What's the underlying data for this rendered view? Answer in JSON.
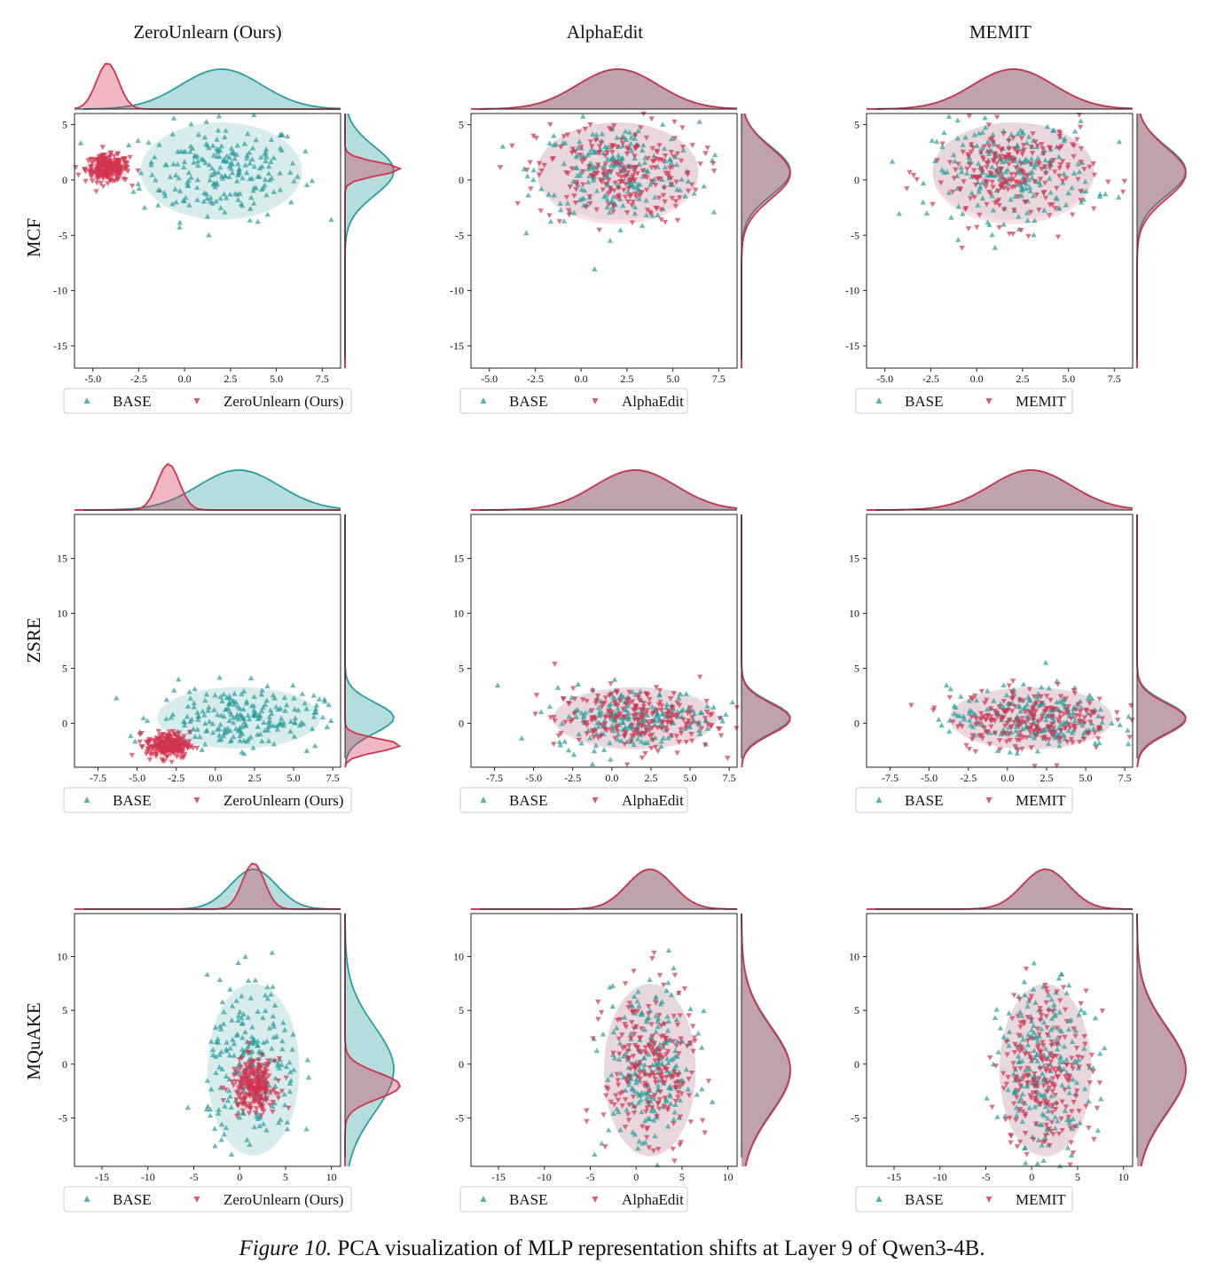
{
  "figure": {
    "caption_label": "Figure 10.",
    "caption_text": "PCA visualization of MLP representation shifts at Layer 9 of Qwen3-4B.",
    "column_titles": [
      "ZeroUnlearn (Ours)",
      "AlphaEdit",
      "MEMIT"
    ],
    "row_labels": [
      "MCF",
      "ZSRE",
      "MQuAKE"
    ]
  },
  "colors": {
    "base": "#2a9d9d",
    "edited": "#d0334f",
    "base_fill": "#cfe7e8",
    "edited_fill": "#f4c6cf"
  },
  "legend": {
    "base_label": "BASE",
    "method_labels": [
      "ZeroUnlearn (Ours)",
      "AlphaEdit",
      "MEMIT"
    ]
  },
  "chart_data": [
    {
      "type": "scatter",
      "dataset": "MCF",
      "method": "ZeroUnlearn (Ours)",
      "xlim": [
        -6,
        8.5
      ],
      "ylim": [
        -17,
        6
      ],
      "xticks": [
        "-5.0",
        "-2.5",
        "0.0",
        "2.5",
        "5.0",
        "7.5"
      ],
      "yticks": [
        "5",
        "0",
        "-5",
        "-10",
        "-15"
      ],
      "legend": [
        "BASE",
        "ZeroUnlearn (Ours)"
      ],
      "series": [
        {
          "marker": "triangle-up",
          "color": "#2a9d9d",
          "center": [
            2,
            0.8
          ],
          "spread": [
            2.2,
            2.2
          ]
        },
        {
          "marker": "triangle-down",
          "color": "#d0334f",
          "center": [
            -4.2,
            1
          ],
          "spread": [
            0.6,
            0.6
          ]
        }
      ]
    },
    {
      "type": "scatter",
      "dataset": "MCF",
      "method": "AlphaEdit",
      "xlim": [
        -6,
        8.5
      ],
      "ylim": [
        -17,
        6
      ],
      "xticks": [
        "-5.0",
        "-2.5",
        "0.0",
        "2.5",
        "5.0",
        "7.5"
      ],
      "yticks": [
        "5",
        "0",
        "-5",
        "-10",
        "-15"
      ],
      "legend": [
        "BASE",
        "AlphaEdit"
      ],
      "series": [
        {
          "marker": "triangle-up",
          "color": "#2a9d9d",
          "center": [
            2,
            0.8
          ],
          "spread": [
            2.2,
            2.2
          ]
        },
        {
          "marker": "triangle-down",
          "color": "#d0334f",
          "center": [
            2,
            0.6
          ],
          "spread": [
            2.2,
            2.3
          ]
        }
      ]
    },
    {
      "type": "scatter",
      "dataset": "MCF",
      "method": "MEMIT",
      "xlim": [
        -6,
        8.5
      ],
      "ylim": [
        -17,
        6
      ],
      "xticks": [
        "-5.0",
        "-2.5",
        "0.0",
        "2.5",
        "5.0",
        "7.5"
      ],
      "yticks": [
        "5",
        "0",
        "-5",
        "-10",
        "-15"
      ],
      "legend": [
        "BASE",
        "MEMIT"
      ],
      "series": [
        {
          "marker": "triangle-up",
          "color": "#2a9d9d",
          "center": [
            2,
            0.8
          ],
          "spread": [
            2.2,
            2.2
          ]
        },
        {
          "marker": "triangle-down",
          "color": "#d0334f",
          "center": [
            2,
            0.6
          ],
          "spread": [
            2.2,
            2.3
          ]
        }
      ]
    },
    {
      "type": "scatter",
      "dataset": "ZSRE",
      "method": "ZeroUnlearn (Ours)",
      "xlim": [
        -9,
        8
      ],
      "ylim": [
        -4,
        19
      ],
      "xticks": [
        "-7.5",
        "-5.0",
        "-2.5",
        "0.0",
        "2.5",
        "5.0",
        "7.5"
      ],
      "yticks": [
        "15",
        "10",
        "5",
        "0"
      ],
      "legend": [
        "BASE",
        "ZeroUnlearn (Ours)"
      ],
      "series": [
        {
          "marker": "triangle-up",
          "color": "#2a9d9d",
          "center": [
            1.5,
            0.5
          ],
          "spread": [
            2.6,
            1.4
          ]
        },
        {
          "marker": "triangle-down",
          "color": "#d0334f",
          "center": [
            -3,
            -2
          ],
          "spread": [
            0.7,
            0.6
          ]
        }
      ]
    },
    {
      "type": "scatter",
      "dataset": "ZSRE",
      "method": "AlphaEdit",
      "xlim": [
        -9,
        8
      ],
      "ylim": [
        -4,
        19
      ],
      "xticks": [
        "-7.5",
        "-5.0",
        "-2.5",
        "0.0",
        "2.5",
        "5.0",
        "7.5"
      ],
      "yticks": [
        "15",
        "10",
        "5",
        "0"
      ],
      "legend": [
        "BASE",
        "AlphaEdit"
      ],
      "series": [
        {
          "marker": "triangle-up",
          "color": "#2a9d9d",
          "center": [
            1.5,
            0.5
          ],
          "spread": [
            2.6,
            1.4
          ]
        },
        {
          "marker": "triangle-down",
          "color": "#d0334f",
          "center": [
            1.5,
            0.4
          ],
          "spread": [
            2.6,
            1.4
          ]
        }
      ]
    },
    {
      "type": "scatter",
      "dataset": "ZSRE",
      "method": "MEMIT",
      "xlim": [
        -9,
        8
      ],
      "ylim": [
        -4,
        19
      ],
      "xticks": [
        "-7.5",
        "-5.0",
        "-2.5",
        "0.0",
        "2.5",
        "5.0",
        "7.5"
      ],
      "yticks": [
        "15",
        "10",
        "5",
        "0"
      ],
      "legend": [
        "BASE",
        "MEMIT"
      ],
      "series": [
        {
          "marker": "triangle-up",
          "color": "#2a9d9d",
          "center": [
            1.5,
            0.5
          ],
          "spread": [
            2.6,
            1.4
          ]
        },
        {
          "marker": "triangle-down",
          "color": "#d0334f",
          "center": [
            1.5,
            0.4
          ],
          "spread": [
            2.6,
            1.4
          ]
        }
      ]
    },
    {
      "type": "scatter",
      "dataset": "MQuAKE",
      "method": "ZeroUnlearn (Ours)",
      "xlim": [
        -18,
        11
      ],
      "ylim": [
        -9.5,
        14
      ],
      "xticks": [
        "-15",
        "-10",
        "-5",
        "0",
        "5",
        "10"
      ],
      "yticks": [
        "10",
        "5",
        "0",
        "-5"
      ],
      "legend": [
        "BASE",
        "ZeroUnlearn (Ours)"
      ],
      "series": [
        {
          "marker": "triangle-up",
          "color": "#2a9d9d",
          "center": [
            1.5,
            -0.5
          ],
          "spread": [
            2.5,
            4
          ]
        },
        {
          "marker": "triangle-down",
          "color": "#d0334f",
          "center": [
            1.5,
            -2
          ],
          "spread": [
            1.2,
            1.2
          ]
        }
      ]
    },
    {
      "type": "scatter",
      "dataset": "MQuAKE",
      "method": "AlphaEdit",
      "xlim": [
        -18,
        11
      ],
      "ylim": [
        -9.5,
        14
      ],
      "xticks": [
        "-15",
        "-10",
        "-5",
        "0",
        "5",
        "10"
      ],
      "yticks": [
        "10",
        "5",
        "0",
        "-5"
      ],
      "legend": [
        "BASE",
        "AlphaEdit"
      ],
      "series": [
        {
          "marker": "triangle-up",
          "color": "#2a9d9d",
          "center": [
            1.5,
            -0.5
          ],
          "spread": [
            2.5,
            4
          ]
        },
        {
          "marker": "triangle-down",
          "color": "#d0334f",
          "center": [
            1.5,
            -0.6
          ],
          "spread": [
            2.5,
            4
          ]
        }
      ]
    },
    {
      "type": "scatter",
      "dataset": "MQuAKE",
      "method": "MEMIT",
      "xlim": [
        -18,
        11
      ],
      "ylim": [
        -9.5,
        14
      ],
      "xticks": [
        "-15",
        "-10",
        "-5",
        "0",
        "5",
        "10"
      ],
      "yticks": [
        "10",
        "5",
        "0",
        "-5"
      ],
      "legend": [
        "BASE",
        "MEMIT"
      ],
      "series": [
        {
          "marker": "triangle-up",
          "color": "#2a9d9d",
          "center": [
            1.5,
            -0.5
          ],
          "spread": [
            2.5,
            4
          ]
        },
        {
          "marker": "triangle-down",
          "color": "#d0334f",
          "center": [
            1.5,
            -0.6
          ],
          "spread": [
            2.5,
            4
          ]
        }
      ]
    }
  ]
}
